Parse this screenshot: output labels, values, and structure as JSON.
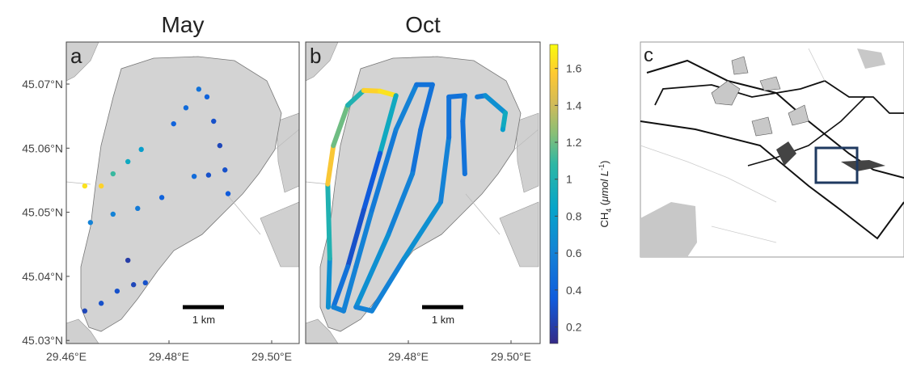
{
  "panels": [
    {
      "label": "a",
      "title": "May",
      "scale_bar": "1 km",
      "xticks": [
        {
          "value": 29.46,
          "label": "29.46°E"
        },
        {
          "value": 29.48,
          "label": "29.48°E"
        },
        {
          "value": 29.5,
          "label": "29.50°E"
        }
      ],
      "points": [
        {
          "lon": 29.4809,
          "lat": 45.0638,
          "ch4": 0.4
        },
        {
          "lon": 29.4833,
          "lat": 45.0663,
          "ch4": 0.45
        },
        {
          "lon": 29.4858,
          "lat": 45.0692,
          "ch4": 0.5
        },
        {
          "lon": 29.4874,
          "lat": 45.068,
          "ch4": 0.4
        },
        {
          "lon": 29.4887,
          "lat": 45.0642,
          "ch4": 0.3
        },
        {
          "lon": 29.4899,
          "lat": 45.0604,
          "ch4": 0.25
        },
        {
          "lon": 29.4909,
          "lat": 45.0566,
          "ch4": 0.3
        },
        {
          "lon": 29.4915,
          "lat": 45.0529,
          "ch4": 0.35
        },
        {
          "lon": 29.4849,
          "lat": 45.0556,
          "ch4": 0.45
        },
        {
          "lon": 29.4877,
          "lat": 45.0558,
          "ch4": 0.3
        },
        {
          "lon": 29.4636,
          "lat": 45.0541,
          "ch4": 1.65
        },
        {
          "lon": 29.4668,
          "lat": 45.0541,
          "ch4": 1.6
        },
        {
          "lon": 29.4691,
          "lat": 45.056,
          "ch4": 1.1
        },
        {
          "lon": 29.472,
          "lat": 45.0579,
          "ch4": 0.9
        },
        {
          "lon": 29.4746,
          "lat": 45.0598,
          "ch4": 0.8
        },
        {
          "lon": 29.4647,
          "lat": 45.0484,
          "ch4": 0.6
        },
        {
          "lon": 29.4691,
          "lat": 45.0497,
          "ch4": 0.6
        },
        {
          "lon": 29.4739,
          "lat": 45.0506,
          "ch4": 0.55
        },
        {
          "lon": 29.4786,
          "lat": 45.0523,
          "ch4": 0.4
        },
        {
          "lon": 29.4636,
          "lat": 45.0346,
          "ch4": 0.25
        },
        {
          "lon": 29.4668,
          "lat": 45.0358,
          "ch4": 0.3
        },
        {
          "lon": 29.4699,
          "lat": 45.0377,
          "ch4": 0.3
        },
        {
          "lon": 29.4731,
          "lat": 45.0387,
          "ch4": 0.25
        },
        {
          "lon": 29.4754,
          "lat": 45.039,
          "ch4": 0.3
        },
        {
          "lon": 29.472,
          "lat": 45.0425,
          "ch4": 0.2
        }
      ]
    },
    {
      "label": "b",
      "title": "Oct",
      "scale_bar": "1 km",
      "xticks": [
        {
          "value": 29.48,
          "label": "29.48°E"
        },
        {
          "value": 29.5,
          "label": "29.50°E"
        }
      ],
      "track": [
        {
          "lon": 29.4644,
          "lat": 45.0352,
          "ch4": 0.7
        },
        {
          "lon": 29.4647,
          "lat": 45.0428,
          "ch4": 1.0
        },
        {
          "lon": 29.4643,
          "lat": 45.0544,
          "ch4": 1.55
        },
        {
          "lon": 29.4654,
          "lat": 45.0604,
          "ch4": 1.2
        },
        {
          "lon": 29.4682,
          "lat": 45.0667,
          "ch4": 1.0
        },
        {
          "lon": 29.4713,
          "lat": 45.069,
          "ch4": 1.6
        },
        {
          "lon": 29.4745,
          "lat": 45.0689,
          "ch4": 1.65
        },
        {
          "lon": 29.4776,
          "lat": 45.0682,
          "ch4": 0.9
        },
        {
          "lon": 29.4745,
          "lat": 45.0592,
          "ch4": 0.35
        },
        {
          "lon": 29.4713,
          "lat": 45.0503,
          "ch4": 0.3
        },
        {
          "lon": 29.4682,
          "lat": 45.0415,
          "ch4": 0.5
        },
        {
          "lon": 29.4654,
          "lat": 45.0352,
          "ch4": 0.6
        },
        {
          "lon": 29.4674,
          "lat": 45.0346,
          "ch4": 0.6
        },
        {
          "lon": 29.4698,
          "lat": 45.0415,
          "ch4": 0.6
        },
        {
          "lon": 29.4729,
          "lat": 45.0503,
          "ch4": 0.55
        },
        {
          "lon": 29.4776,
          "lat": 45.0629,
          "ch4": 0.6
        },
        {
          "lon": 29.4816,
          "lat": 45.0699,
          "ch4": 0.5
        },
        {
          "lon": 29.4847,
          "lat": 45.0699,
          "ch4": 0.5
        },
        {
          "lon": 29.4824,
          "lat": 45.0629,
          "ch4": 0.5
        },
        {
          "lon": 29.4808,
          "lat": 45.056,
          "ch4": 0.6
        },
        {
          "lon": 29.4761,
          "lat": 45.0465,
          "ch4": 0.7
        },
        {
          "lon": 29.4698,
          "lat": 45.0352,
          "ch4": 0.6
        },
        {
          "lon": 29.4729,
          "lat": 45.0346,
          "ch4": 0.6
        },
        {
          "lon": 29.4792,
          "lat": 45.0428,
          "ch4": 0.7
        },
        {
          "lon": 29.4863,
          "lat": 45.0516,
          "ch4": 0.6
        },
        {
          "lon": 29.4879,
          "lat": 45.0617,
          "ch4": 0.5
        },
        {
          "lon": 29.4879,
          "lat": 45.068,
          "ch4": 0.5
        },
        {
          "lon": 29.491,
          "lat": 45.0682,
          "ch4": 0.55
        },
        {
          "lon": 29.4906,
          "lat": 45.0642,
          "ch4": 0.5
        },
        {
          "lon": 29.491,
          "lat": 45.056,
          "ch4": 0.5
        }
      ],
      "track2": [
        {
          "lon": 29.4934,
          "lat": 45.068,
          "ch4": 0.55
        },
        {
          "lon": 29.495,
          "lat": 45.0682,
          "ch4": 0.7
        },
        {
          "lon": 29.4989,
          "lat": 45.0655,
          "ch4": 0.9
        },
        {
          "lon": 29.4984,
          "lat": 45.0629,
          "ch4": 0.8
        }
      ]
    }
  ],
  "yticks": [
    {
      "value": 45.07,
      "label": "45.07°N"
    },
    {
      "value": 45.06,
      "label": "45.06°N"
    },
    {
      "value": 45.05,
      "label": "45.05°N"
    },
    {
      "value": 45.04,
      "label": "45.04°N"
    },
    {
      "value": 45.03,
      "label": "45.03°N"
    }
  ],
  "colorbar": {
    "lim": [
      0.11,
      1.73
    ],
    "ticks": [
      0.2,
      0.4,
      0.6,
      0.8,
      1.0,
      1.2,
      1.4,
      1.6
    ],
    "label": {
      "main": "CH",
      "sub": "4",
      "open": " (",
      "unit": "μmol L",
      "sup": "-1",
      "close": ")"
    }
  },
  "inset": {
    "label": "c"
  }
}
